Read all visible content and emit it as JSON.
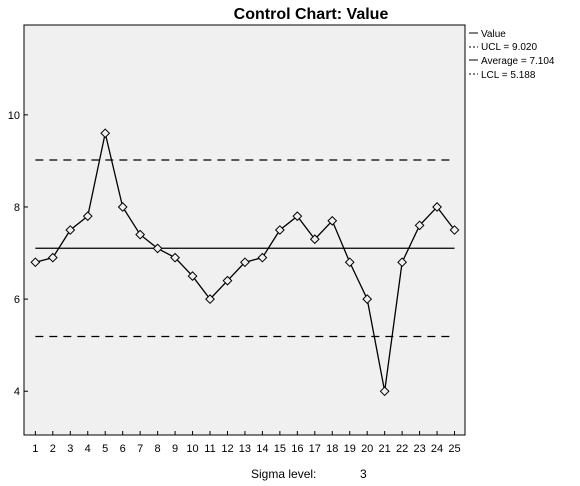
{
  "chart_data": {
    "type": "line",
    "title": "Control Chart: Value",
    "x": [
      1,
      2,
      3,
      4,
      5,
      6,
      7,
      8,
      9,
      10,
      11,
      12,
      13,
      14,
      15,
      16,
      17,
      18,
      19,
      20,
      21,
      22,
      23,
      24,
      25
    ],
    "series": [
      {
        "name": "Value",
        "values": [
          6.8,
          6.9,
          7.5,
          7.8,
          9.6,
          8.0,
          7.4,
          7.1,
          6.9,
          6.5,
          6.0,
          6.4,
          6.8,
          6.9,
          7.5,
          7.8,
          7.3,
          7.7,
          6.8,
          6.0,
          4.0,
          6.8,
          7.6,
          8.0,
          7.5
        ]
      }
    ],
    "control_lines": [
      {
        "key": "ucl",
        "label": "UCL = 9.020",
        "value": 9.02,
        "style": "dashed"
      },
      {
        "key": "average",
        "label": "Average = 7.104",
        "value": 7.104,
        "style": "solid"
      },
      {
        "key": "lcl",
        "label": "LCL = 5.188",
        "value": 5.188,
        "style": "dashed"
      }
    ],
    "xlim": [
      0.35,
      25.6
    ],
    "ylim": [
      3.05,
      11.95
    ],
    "yticks": [
      4,
      6,
      8,
      10
    ],
    "grid": false,
    "legend_placement": "top-right",
    "colors": {
      "plot_background": "#f0f0f0",
      "line": "#000000"
    },
    "footer": {
      "label": "Sigma level:",
      "value": "3"
    }
  }
}
